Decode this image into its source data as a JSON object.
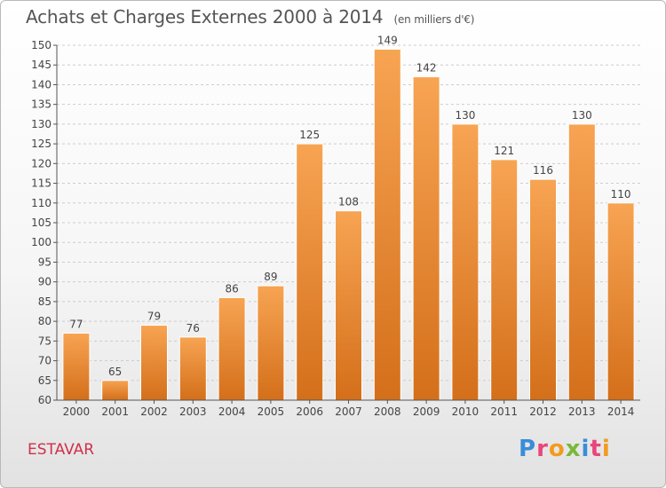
{
  "header": {
    "title": "Achats et Charges Externes 2000 à 2014",
    "subtitle": "(en milliers d'€)"
  },
  "footer": {
    "commune": "ESTAVAR",
    "logo_text": "Proxiti",
    "logo_colors": [
      "#3a8dd8",
      "#e8467c",
      "#f29b1f",
      "#7ab83a",
      "#3a8dd8",
      "#e8467c",
      "#f29b1f"
    ]
  },
  "colors": {
    "bar_top": "#f7a453",
    "bar_bottom": "#d46f1a",
    "axis": "#555555",
    "grid": "#cccccc"
  },
  "chart_data": {
    "type": "bar",
    "title": "Achats et Charges Externes 2000 à 2014",
    "categories": [
      "2000",
      "2001",
      "2002",
      "2003",
      "2004",
      "2005",
      "2006",
      "2007",
      "2008",
      "2009",
      "2010",
      "2011",
      "2012",
      "2013",
      "2014"
    ],
    "values": [
      77,
      65,
      79,
      76,
      86,
      89,
      125,
      108,
      149,
      142,
      130,
      121,
      116,
      130,
      110
    ],
    "ylim": [
      60,
      150
    ],
    "yticks": [
      60,
      65,
      70,
      75,
      80,
      85,
      90,
      95,
      100,
      105,
      110,
      115,
      120,
      125,
      130,
      135,
      140,
      145,
      150
    ],
    "xlabel": "",
    "ylabel": "",
    "grid": true,
    "data_labels": true
  }
}
